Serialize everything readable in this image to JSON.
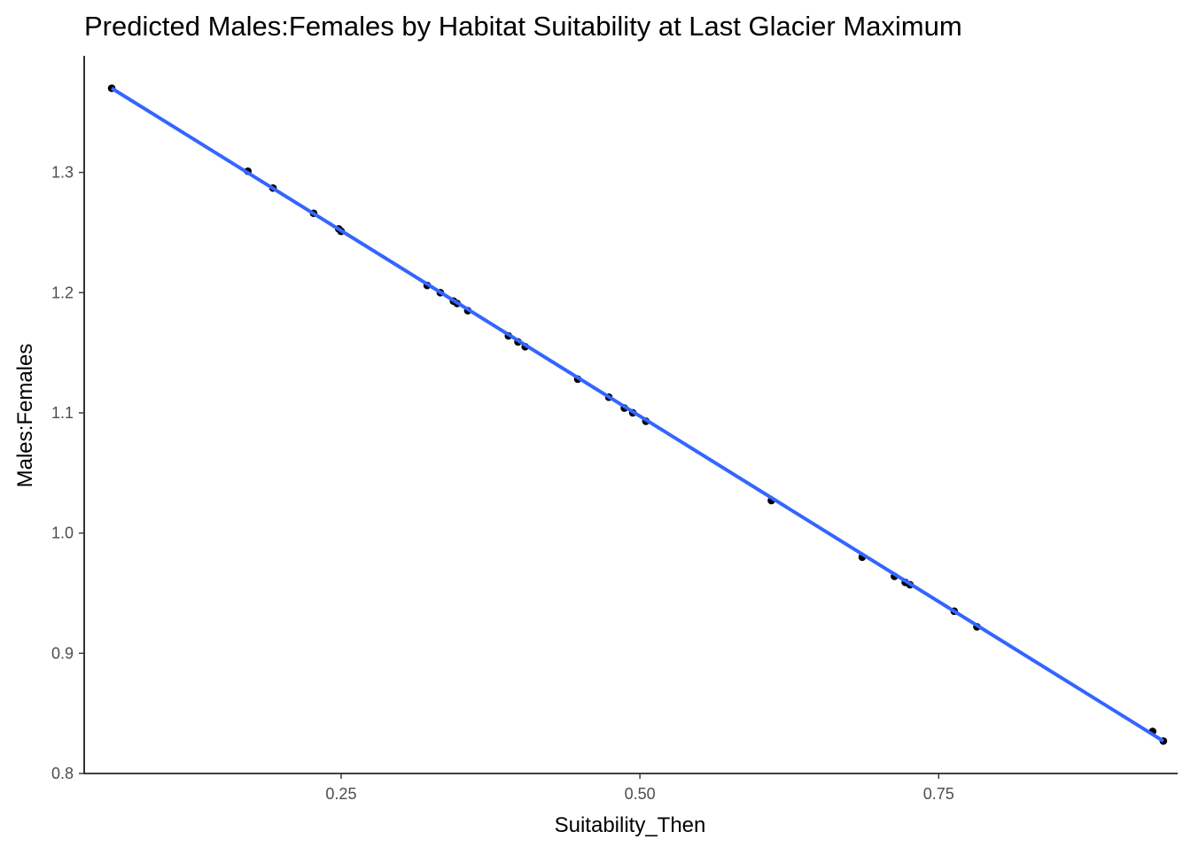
{
  "chart_data": {
    "type": "scatter",
    "title": "Predicted Males:Females by Habitat Suitability at Last Glacier Maximum",
    "xlabel": "Suitability_Then",
    "ylabel": "Males:Females",
    "xlim": [
      0.035,
      0.95
    ],
    "ylim": [
      0.8,
      1.397
    ],
    "x_ticks": [
      0.25,
      0.5,
      0.75
    ],
    "x_tick_labels": [
      "0.25",
      "0.50",
      "0.75"
    ],
    "y_ticks": [
      0.8,
      0.9,
      1.0,
      1.1,
      1.2,
      1.3
    ],
    "y_tick_labels": [
      "0.8",
      "0.9",
      "1.0",
      "1.1",
      "1.2",
      "1.3"
    ],
    "grid": false,
    "legend": "none",
    "series": [
      {
        "type": "scatter",
        "color": "#000000",
        "x": [
          0.058,
          0.172,
          0.193,
          0.227,
          0.248,
          0.25,
          0.322,
          0.333,
          0.344,
          0.347,
          0.356,
          0.39,
          0.398,
          0.404,
          0.448,
          0.474,
          0.487,
          0.494,
          0.505,
          0.61,
          0.686,
          0.713,
          0.722,
          0.726,
          0.763,
          0.782,
          0.929,
          0.938
        ],
        "y": [
          1.37,
          1.301,
          1.287,
          1.266,
          1.253,
          1.251,
          1.206,
          1.2,
          1.193,
          1.191,
          1.185,
          1.164,
          1.159,
          1.155,
          1.128,
          1.113,
          1.104,
          1.1,
          1.093,
          1.027,
          0.98,
          0.964,
          0.959,
          0.957,
          0.935,
          0.922,
          0.835,
          0.827
        ]
      },
      {
        "type": "line",
        "color": "#3366FF",
        "x": [
          0.058,
          0.938
        ],
        "y": [
          1.37,
          0.827
        ]
      }
    ]
  }
}
